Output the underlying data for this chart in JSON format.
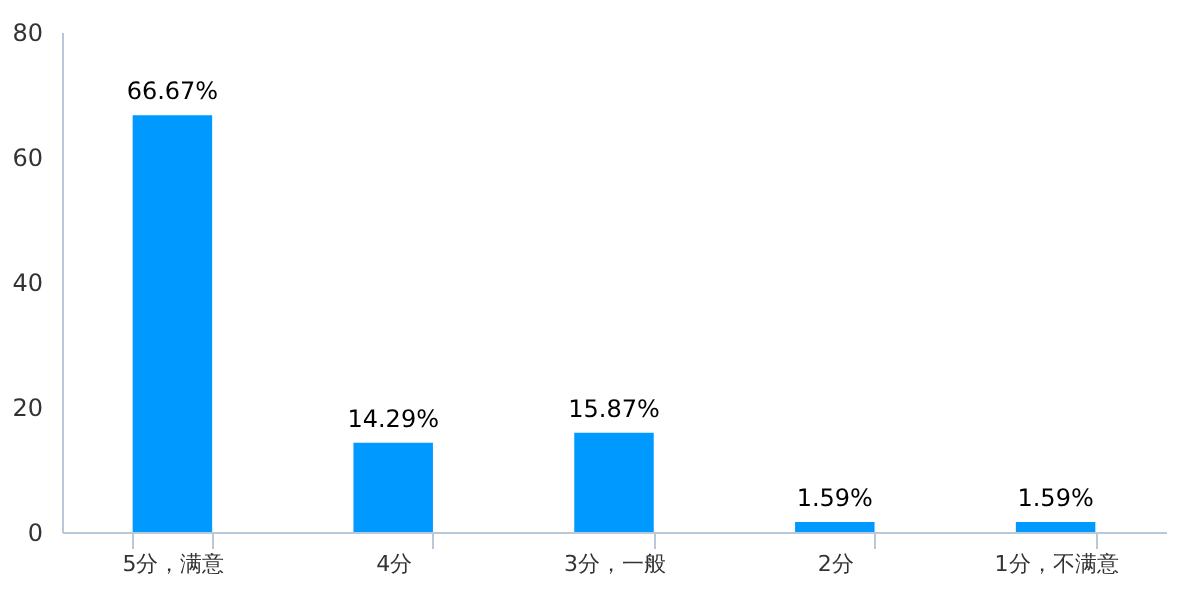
{
  "chart_data": {
    "type": "bar",
    "categories": [
      "5分，满意",
      "4分",
      "3分，一般",
      "2分",
      "1分，不满意"
    ],
    "values": [
      66.67,
      14.29,
      15.87,
      1.59,
      1.59
    ],
    "value_labels": [
      "66.67%",
      "14.29%",
      "15.87%",
      "1.59%",
      "1.59%"
    ],
    "color": "#0099ff",
    "ylim": [
      0,
      80
    ],
    "yticks": [
      0,
      20,
      40,
      60,
      80
    ],
    "grid": false
  }
}
